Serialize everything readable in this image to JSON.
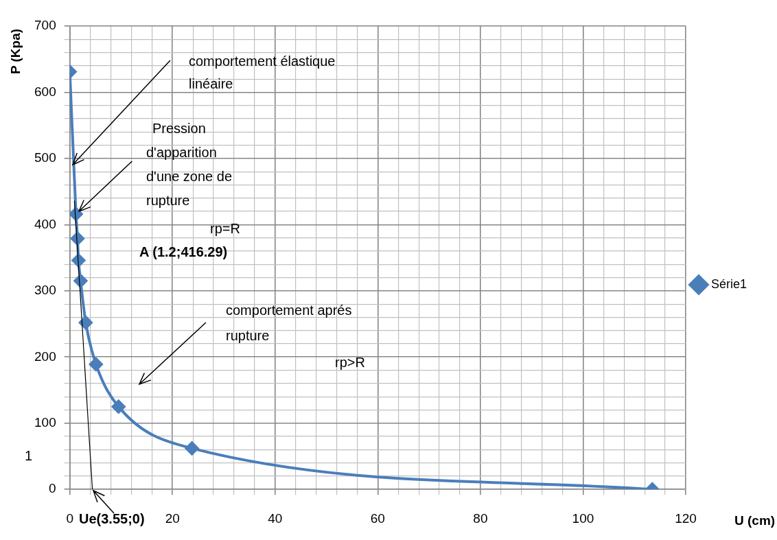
{
  "chart_data": {
    "type": "line",
    "xlabel": "U (cm)",
    "ylabel": "P (Kpa)",
    "xlim": [
      0,
      120
    ],
    "ylim": [
      0,
      700
    ],
    "xticks": [
      0,
      {
        "value": 4,
        "label": null
      },
      {
        "value": 8,
        "label": null
      },
      {
        "value": 12,
        "label": null
      },
      {
        "value": 16,
        "label": null
      },
      20,
      {
        "value": 24,
        "label": null
      },
      {
        "value": 28,
        "label": null
      },
      {
        "value": 32,
        "label": null
      },
      {
        "value": 36,
        "label": null
      },
      40,
      {
        "value": 44,
        "label": null
      },
      {
        "value": 48,
        "label": null
      },
      {
        "value": 52,
        "label": null
      },
      {
        "value": 56,
        "label": null
      },
      60,
      {
        "value": 64,
        "label": null
      },
      {
        "value": 68,
        "label": null
      },
      {
        "value": 72,
        "label": null
      },
      {
        "value": 76,
        "label": null
      },
      80,
      {
        "value": 84,
        "label": null
      },
      {
        "value": 88,
        "label": null
      },
      {
        "value": 92,
        "label": null
      },
      {
        "value": 96,
        "label": null
      },
      100,
      {
        "value": 104,
        "label": null
      },
      {
        "value": 108,
        "label": null
      },
      {
        "value": 112,
        "label": null
      },
      {
        "value": 116,
        "label": null
      },
      120
    ],
    "yticks": [
      0,
      {
        "value": 20,
        "label": null
      },
      {
        "value": 40,
        "label": null
      },
      {
        "value": 60,
        "label": null
      },
      {
        "value": 80,
        "label": null
      },
      100,
      {
        "value": 120,
        "label": null
      },
      {
        "value": 140,
        "label": null
      },
      {
        "value": 160,
        "label": null
      },
      {
        "value": 180,
        "label": null
      },
      200,
      {
        "value": 220,
        "label": null
      },
      {
        "value": 240,
        "label": null
      },
      {
        "value": 260,
        "label": null
      },
      {
        "value": 280,
        "label": null
      },
      300,
      {
        "value": 320,
        "label": null
      },
      {
        "value": 340,
        "label": null
      },
      {
        "value": 360,
        "label": null
      },
      {
        "value": 380,
        "label": null
      },
      400,
      {
        "value": 420,
        "label": null
      },
      {
        "value": 440,
        "label": null
      },
      {
        "value": 460,
        "label": null
      },
      {
        "value": 480,
        "label": null
      },
      500,
      {
        "value": 520,
        "label": null
      },
      {
        "value": 540,
        "label": null
      },
      {
        "value": 560,
        "label": null
      },
      {
        "value": 580,
        "label": null
      },
      600,
      {
        "value": 620,
        "label": null
      },
      {
        "value": 640,
        "label": null
      },
      {
        "value": 660,
        "label": null
      },
      {
        "value": 680,
        "label": null
      },
      700
    ],
    "grid": true,
    "legend": "right",
    "series": [
      {
        "name": "Série1",
        "color": "#4a7ebb",
        "marker": "diamond",
        "x": [
          0,
          1.2,
          1.5,
          1.7,
          2.1,
          3.1,
          5.1,
          9.5,
          23.8,
          113.5
        ],
        "values": [
          631,
          416,
          379,
          346,
          315,
          252,
          189,
          125,
          62,
          0
        ]
      },
      {
        "color": "#000000",
        "marker": "none",
        "x": [
          0.9,
          4.4
        ],
        "values": [
          436,
          0
        ]
      }
    ],
    "annotations": [
      "comportement élastique\nlinéaire",
      {
        "text": "Pression\nd'apparition\nd'une zone de\nrupture",
        "x": 1.2,
        "y": 416
      },
      "rp=R",
      "A (1.2;416.29)",
      "comportement aprés\nrupture",
      "rp>R",
      "Ue(3.55;0)",
      "1"
    ]
  }
}
